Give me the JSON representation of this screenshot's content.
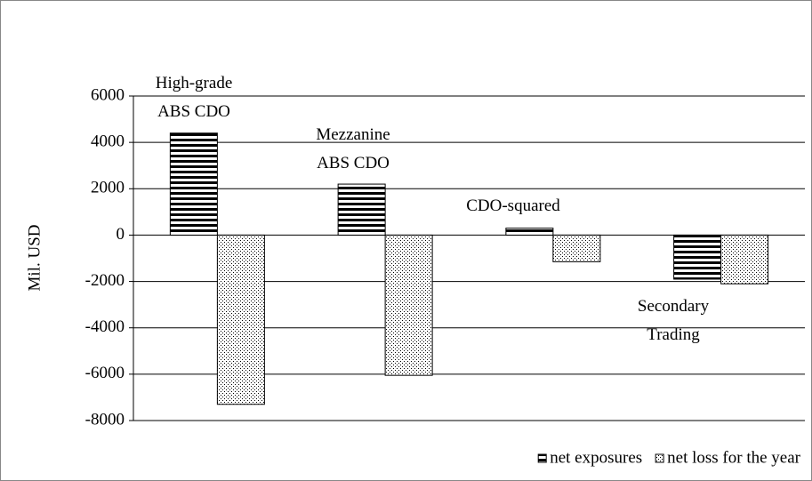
{
  "chart_data": {
    "type": "bar",
    "ylabel": "Mil. USD",
    "categories": [
      "High-grade\nABS CDO",
      "Mezzanine\nABS CDO",
      "CDO-squared",
      "Secondary\nTrading"
    ],
    "series": [
      {
        "name": "net exposures",
        "color": "#000000",
        "pattern": "stripes",
        "values": [
          4400,
          2200,
          300,
          -1900
        ]
      },
      {
        "name": "net loss for the year",
        "color": "#000000",
        "pattern": "dots",
        "values": [
          -7300,
          -6050,
          -1150,
          -2100
        ]
      }
    ],
    "ylim": [
      -8000,
      6000
    ],
    "yticks": [
      -8000,
      -6000,
      -4000,
      -2000,
      0,
      2000,
      4000,
      6000
    ],
    "grid": true,
    "legend": "bottom-right"
  }
}
